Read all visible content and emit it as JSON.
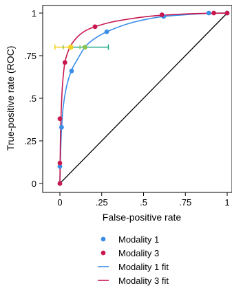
{
  "chart_data": {
    "type": "scatter",
    "xlabel": "False-positive rate",
    "ylabel": "True-positive rate (ROC)",
    "xlim": [
      0,
      1
    ],
    "ylim": [
      0,
      1
    ],
    "xticks": [
      {
        "v": 0,
        "label": "0"
      },
      {
        "v": 0.25,
        "label": ".25"
      },
      {
        "v": 0.5,
        "label": ".5"
      },
      {
        "v": 0.75,
        "label": ".75"
      },
      {
        "v": 1,
        "label": "1"
      }
    ],
    "yticks": [
      {
        "v": 0,
        "label": "0"
      },
      {
        "v": 0.25,
        "label": ".25"
      },
      {
        "v": 0.5,
        "label": ".5"
      },
      {
        "v": 0.75,
        "label": ".75"
      },
      {
        "v": 1,
        "label": "1"
      }
    ],
    "grid": false,
    "legend_position": "bottom",
    "colors": {
      "modality1": "#3a8ee8",
      "modality3": "#c8184e",
      "reference": "#000000",
      "ci_left": "#f2d21c",
      "ci_right": "#1fa98a",
      "ci_center": "#8bc34a"
    },
    "series": [
      {
        "name": "Modality 1",
        "kind": "points",
        "x": [
          0.0,
          0.0,
          0.01,
          0.07,
          0.15,
          0.28,
          0.62,
          0.89,
          1.0
        ],
        "y": [
          0.0,
          0.1,
          0.33,
          0.66,
          0.8,
          0.89,
          0.98,
          1.0,
          1.0
        ]
      },
      {
        "name": "Modality 3",
        "kind": "points",
        "x": [
          0.0,
          0.0,
          0.0,
          0.03,
          0.21,
          0.61,
          0.92,
          1.0
        ],
        "y": [
          0.0,
          0.12,
          0.38,
          0.71,
          0.92,
          0.99,
          1.0,
          1.0
        ]
      },
      {
        "name": "Modality 1 fit",
        "kind": "curve",
        "x": [
          0,
          0.005,
          0.01,
          0.02,
          0.04,
          0.07,
          0.1,
          0.15,
          0.2,
          0.28,
          0.4,
          0.5,
          0.62,
          0.75,
          0.89,
          1.0
        ],
        "y": [
          0,
          0.2,
          0.32,
          0.45,
          0.57,
          0.665,
          0.72,
          0.8,
          0.845,
          0.89,
          0.935,
          0.96,
          0.98,
          0.99,
          0.998,
          1.0
        ]
      },
      {
        "name": "Modality 3 fit",
        "kind": "curve",
        "x": [
          0,
          0.003,
          0.007,
          0.015,
          0.03,
          0.06,
          0.1,
          0.15,
          0.21,
          0.3,
          0.4,
          0.5,
          0.61,
          0.75,
          0.9,
          1.0
        ],
        "y": [
          0,
          0.25,
          0.4,
          0.57,
          0.71,
          0.8,
          0.855,
          0.895,
          0.92,
          0.945,
          0.963,
          0.977,
          0.987,
          0.995,
          0.999,
          1.0
        ]
      },
      {
        "kind": "reference-line",
        "x": [
          0,
          1
        ],
        "y": [
          0,
          1
        ]
      }
    ],
    "intervals": [
      {
        "y": 0.8,
        "x_low": -0.03,
        "x_mid": 0.065,
        "x_high": 0.29
      }
    ],
    "legend": [
      "Modality 1",
      "Modality 3",
      "Modality 1 fit",
      "Modality 3 fit"
    ]
  }
}
